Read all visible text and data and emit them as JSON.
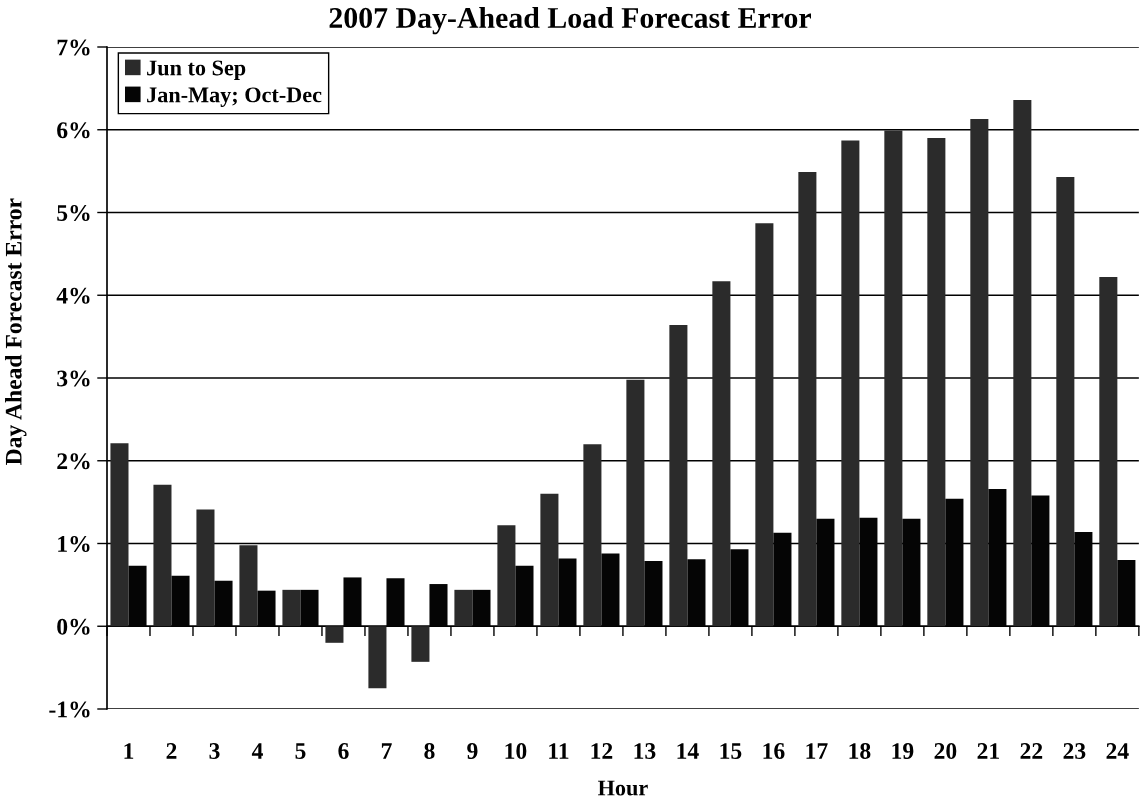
{
  "chart_data": {
    "type": "bar",
    "title": "2007 Day-Ahead Load Forecast Error",
    "xlabel": "Hour",
    "ylabel": "Day Ahead Forecast Error",
    "categories": [
      "1",
      "2",
      "3",
      "4",
      "5",
      "6",
      "7",
      "8",
      "9",
      "10",
      "11",
      "12",
      "13",
      "14",
      "15",
      "16",
      "17",
      "18",
      "19",
      "20",
      "21",
      "22",
      "23",
      "24"
    ],
    "series": [
      {
        "name": "Jun to Sep",
        "color": "#2b2b2b",
        "values": [
          2.21,
          1.71,
          1.41,
          0.98,
          0.44,
          -0.2,
          -0.75,
          -0.43,
          0.44,
          1.22,
          1.6,
          2.2,
          2.98,
          3.64,
          4.17,
          4.87,
          5.49,
          5.87,
          5.99,
          5.9,
          6.13,
          6.36,
          5.43,
          4.22
        ]
      },
      {
        "name": "Jan-May; Oct-Dec",
        "color": "#050505",
        "values": [
          0.73,
          0.61,
          0.55,
          0.43,
          0.44,
          0.59,
          0.58,
          0.51,
          0.44,
          0.73,
          0.82,
          0.88,
          0.79,
          0.81,
          0.93,
          1.13,
          1.3,
          1.31,
          1.3,
          1.54,
          1.66,
          1.58,
          1.14,
          0.8
        ]
      }
    ],
    "ylim": [
      -1,
      7
    ],
    "yticks": [
      {
        "value": -1,
        "label": "-1%"
      },
      {
        "value": 0,
        "label": "0%"
      },
      {
        "value": 1,
        "label": "1%"
      },
      {
        "value": 2,
        "label": "2%"
      },
      {
        "value": 3,
        "label": "3%"
      },
      {
        "value": 4,
        "label": "4%"
      },
      {
        "value": 5,
        "label": "5%"
      },
      {
        "value": 6,
        "label": "6%"
      },
      {
        "value": 7,
        "label": "7%"
      }
    ],
    "grid": "y",
    "legend": "top left"
  }
}
